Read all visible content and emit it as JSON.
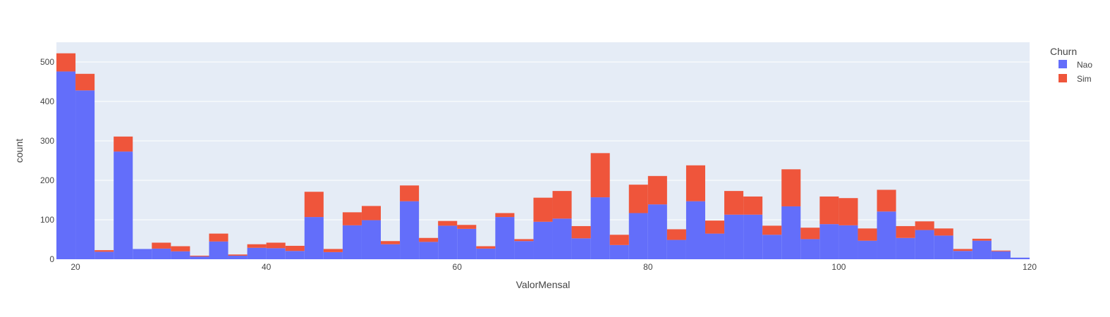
{
  "chart_data": {
    "type": "bar",
    "barmode": "stack",
    "xlabel": "ValorMensal",
    "ylabel": "count",
    "xlim": [
      18,
      120
    ],
    "ylim": [
      0,
      550
    ],
    "xticks": [
      20,
      40,
      60,
      80,
      100,
      120
    ],
    "yticks": [
      0,
      100,
      200,
      300,
      400,
      500
    ],
    "bin_width": 2,
    "grid": true,
    "legend": {
      "title": "Churn",
      "placement": "right"
    },
    "bin_starts": [
      18,
      20,
      22,
      24,
      26,
      28,
      30,
      32,
      34,
      36,
      38,
      40,
      42,
      44,
      46,
      48,
      50,
      52,
      54,
      56,
      58,
      60,
      62,
      64,
      66,
      68,
      70,
      72,
      74,
      76,
      78,
      80,
      82,
      84,
      86,
      88,
      90,
      92,
      94,
      96,
      98,
      100,
      102,
      104,
      106,
      108,
      110,
      112,
      114,
      116,
      118
    ],
    "series": [
      {
        "name": "Nao",
        "color": "#636efa",
        "values": [
          476,
          428,
          19,
          273,
          26,
          27,
          20,
          7,
          45,
          9,
          29,
          28,
          21,
          107,
          18,
          86,
          99,
          38,
          147,
          44,
          85,
          77,
          27,
          107,
          46,
          95,
          103,
          53,
          157,
          36,
          117,
          139,
          49,
          147,
          65,
          113,
          113,
          62,
          134,
          51,
          89,
          86,
          47,
          121,
          54,
          74,
          60,
          21,
          47,
          20,
          4
        ]
      },
      {
        "name": "Sim",
        "color": "#ef553b",
        "values": [
          46,
          42,
          4,
          38,
          0,
          15,
          13,
          2,
          20,
          3,
          9,
          14,
          13,
          64,
          8,
          33,
          36,
          8,
          40,
          10,
          12,
          10,
          6,
          10,
          5,
          61,
          70,
          31,
          112,
          26,
          72,
          72,
          27,
          91,
          33,
          60,
          46,
          23,
          94,
          29,
          70,
          69,
          31,
          55,
          30,
          22,
          18,
          5,
          5,
          2,
          0
        ]
      }
    ]
  }
}
